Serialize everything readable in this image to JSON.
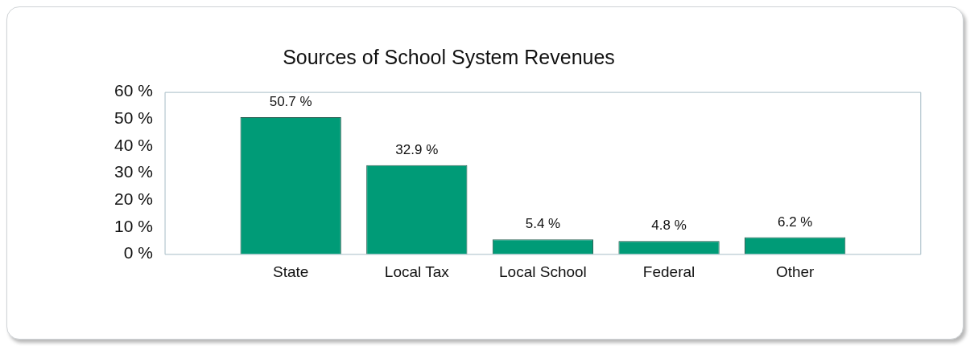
{
  "chart_data": {
    "type": "bar",
    "title": "Sources of School System Revenues",
    "categories": [
      "State",
      "Local Tax",
      "Local School",
      "Federal",
      "Other"
    ],
    "values": [
      50.7,
      32.9,
      5.4,
      4.8,
      6.2
    ],
    "value_labels": [
      "50.7 %",
      "32.9 %",
      "5.4 %",
      "4.8 %",
      "6.2 %"
    ],
    "color": "#009b77",
    "ylim": [
      0,
      60
    ],
    "yticks": [
      {
        "value": 0,
        "label": "0 %"
      },
      {
        "value": 10,
        "label": "10 %"
      },
      {
        "value": 20,
        "label": "20 %"
      },
      {
        "value": 30,
        "label": "30 %"
      },
      {
        "value": 40,
        "label": "40 %"
      },
      {
        "value": 50,
        "label": "50 %"
      },
      {
        "value": 60,
        "label": "60 %"
      }
    ],
    "grid": false,
    "legend": false
  }
}
